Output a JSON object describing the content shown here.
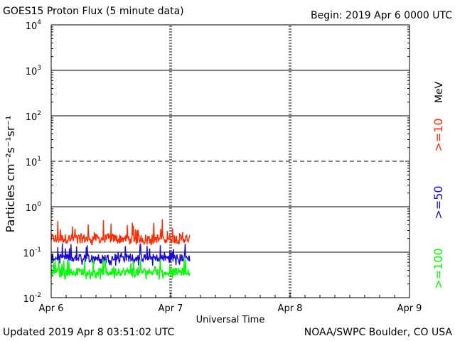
{
  "header": {
    "title": "GOES15 Proton Flux (5 minute data)",
    "begin": "Begin: 2019 Apr 6 0000 UTC"
  },
  "footer": {
    "updated": "Updated 2019 Apr  8 03:51:02 UTC",
    "credit": "NOAA/SWPC Boulder, CO USA"
  },
  "chart_data": {
    "type": "line",
    "title": "GOES15 Proton Flux (5 minute data)",
    "xlabel": "Universal Time",
    "ylabel": "Particles cm⁻²s⁻¹sr⁻¹",
    "yscale": "log",
    "ylim": [
      0.01,
      10000
    ],
    "xlim_days": [
      0,
      3
    ],
    "x_tick_labels": [
      "Apr 6",
      "Apr 7",
      "Apr 8",
      "Apr 9"
    ],
    "y_ticks": [
      {
        "base": "10",
        "exp": "4"
      },
      {
        "base": "10",
        "exp": "3"
      },
      {
        "base": "10",
        "exp": "2"
      },
      {
        "base": "10",
        "exp": "1"
      },
      {
        "base": "10",
        "exp": "0"
      },
      {
        "base": "10",
        "exp": "-1"
      },
      {
        "base": "10",
        "exp": "-2"
      }
    ],
    "dashed_threshold": 10,
    "data_end_day": 1.16,
    "legend_unit": "MeV",
    "series": [
      {
        "name": ">=10",
        "label": ">=10",
        "color": "#ff2a00",
        "baseline": 0.2,
        "min": 0.14,
        "max": 0.55
      },
      {
        "name": ">=50",
        "label": ">=50",
        "color": "#1a0ad6",
        "baseline": 0.075,
        "min": 0.05,
        "max": 0.16
      },
      {
        "name": ">=100",
        "label": ">=100",
        "color": "#00ff00",
        "baseline": 0.037,
        "min": 0.025,
        "max": 0.08
      }
    ]
  }
}
